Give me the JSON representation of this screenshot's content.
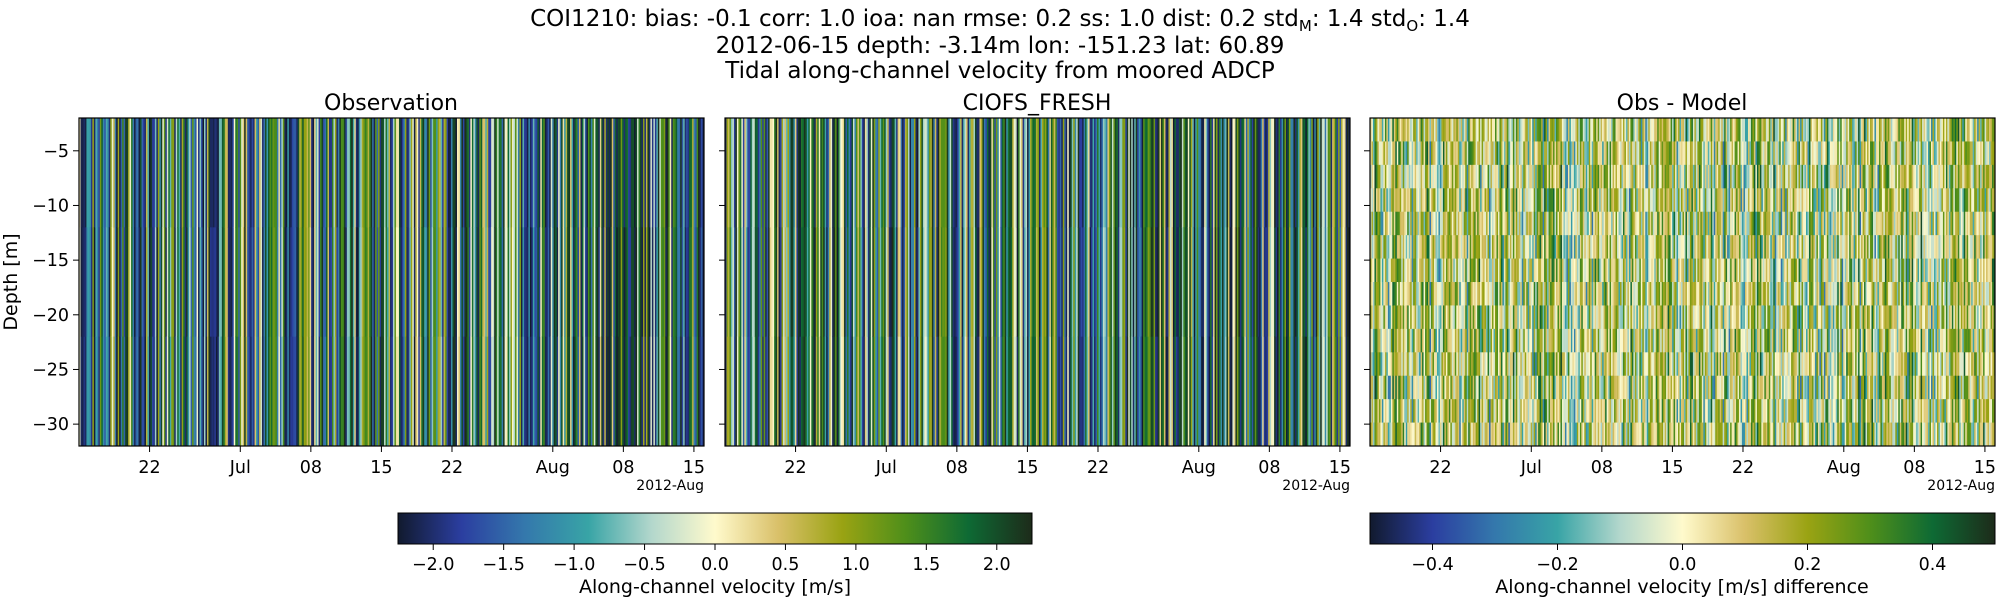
{
  "figure": {
    "title_parts": {
      "line1_head": "COI1210: bias: -0.1  corr: 1.0  ioa: nan  rmse: 0.2  ss: 1.0  dist: 0.2  std",
      "line1_sub1": "M",
      "line1_mid": ": 1.4  std",
      "line1_sub2": "O",
      "line1_tail": ": 1.4",
      "line2": "2012-06-15 depth: -3.14m lon: -151.23 lat: 60.89",
      "line3": "Tidal along-channel velocity from moored ADCP"
    }
  },
  "chart_data": [
    {
      "type": "heatmap",
      "title": "Observation",
      "ylabel": "Depth [m]",
      "xlabel": "",
      "x_range": [
        "2012-06-15",
        "2012-08-16"
      ],
      "ylim": [
        -32,
        -2
      ],
      "x_ticks": [
        {
          "date": "2012-06-22",
          "label": "22"
        },
        {
          "date": "2012-07-01",
          "label": "Jul"
        },
        {
          "date": "2012-07-08",
          "label": "08"
        },
        {
          "date": "2012-07-15",
          "label": "15"
        },
        {
          "date": "2012-07-22",
          "label": "22"
        },
        {
          "date": "2012-08-01",
          "label": "Aug"
        },
        {
          "date": "2012-08-08",
          "label": "08"
        },
        {
          "date": "2012-08-15",
          "label": "15"
        }
      ],
      "x_offset_label": "2012-Aug",
      "y_ticks": [
        -5,
        -10,
        -15,
        -20,
        -25,
        -30
      ],
      "value_range": [
        -2.25,
        2.25
      ],
      "colormap": "delta"
    },
    {
      "type": "heatmap",
      "title": "CIOFS_FRESH",
      "ylabel": "",
      "xlabel": "",
      "x_range": [
        "2012-06-15",
        "2012-08-16"
      ],
      "ylim": [
        -32,
        -2
      ],
      "x_ticks": [
        {
          "date": "2012-06-22",
          "label": "22"
        },
        {
          "date": "2012-07-01",
          "label": "Jul"
        },
        {
          "date": "2012-07-08",
          "label": "08"
        },
        {
          "date": "2012-07-15",
          "label": "15"
        },
        {
          "date": "2012-07-22",
          "label": "22"
        },
        {
          "date": "2012-08-01",
          "label": "Aug"
        },
        {
          "date": "2012-08-08",
          "label": "08"
        },
        {
          "date": "2012-08-15",
          "label": "15"
        }
      ],
      "x_offset_label": "2012-Aug",
      "y_ticks": [
        -5,
        -10,
        -15,
        -20,
        -25,
        -30
      ],
      "value_range": [
        -2.25,
        2.25
      ],
      "colormap": "delta"
    },
    {
      "type": "heatmap",
      "title": "Obs - Model",
      "ylabel": "",
      "xlabel": "",
      "x_range": [
        "2012-06-15",
        "2012-08-16"
      ],
      "ylim": [
        -32,
        -2
      ],
      "x_ticks": [
        {
          "date": "2012-06-22",
          "label": "22"
        },
        {
          "date": "2012-07-01",
          "label": "Jul"
        },
        {
          "date": "2012-07-08",
          "label": "08"
        },
        {
          "date": "2012-07-15",
          "label": "15"
        },
        {
          "date": "2012-07-22",
          "label": "22"
        },
        {
          "date": "2012-08-01",
          "label": "Aug"
        },
        {
          "date": "2012-08-08",
          "label": "08"
        },
        {
          "date": "2012-08-15",
          "label": "15"
        }
      ],
      "x_offset_label": "2012-Aug",
      "y_ticks": [
        -5,
        -10,
        -15,
        -20,
        -25,
        -30
      ],
      "value_range": [
        -0.5,
        0.5
      ],
      "colormap": "delta"
    }
  ],
  "colorbars": [
    {
      "label": "Along-channel velocity [m/s]",
      "range": [
        -2.25,
        2.25
      ],
      "ticks": [
        {
          "value": -2.0,
          "label": "−2.0"
        },
        {
          "value": -1.5,
          "label": "−1.5"
        },
        {
          "value": -1.0,
          "label": "−1.0"
        },
        {
          "value": -0.5,
          "label": "−0.5"
        },
        {
          "value": 0.0,
          "label": "0.0"
        },
        {
          "value": 0.5,
          "label": "0.5"
        },
        {
          "value": 1.0,
          "label": "1.0"
        },
        {
          "value": 1.5,
          "label": "1.5"
        },
        {
          "value": 2.0,
          "label": "2.0"
        }
      ]
    },
    {
      "label": "Along-channel velocity [m/s] difference",
      "range": [
        -0.5,
        0.5
      ],
      "ticks": [
        {
          "value": -0.4,
          "label": "−0.4"
        },
        {
          "value": -0.2,
          "label": "−0.2"
        },
        {
          "value": 0.0,
          "label": "0.0"
        },
        {
          "value": 0.2,
          "label": "0.2"
        },
        {
          "value": 0.4,
          "label": "0.4"
        }
      ]
    }
  ],
  "colors": {
    "colormap_stops": [
      "#111a2e",
      "#2b3ea0",
      "#3478ac",
      "#38a4a6",
      "#b3d7cc",
      "#fffacc",
      "#d9c069",
      "#9aa313",
      "#4f8f1a",
      "#0e6a34",
      "#1d2b1a"
    ]
  }
}
